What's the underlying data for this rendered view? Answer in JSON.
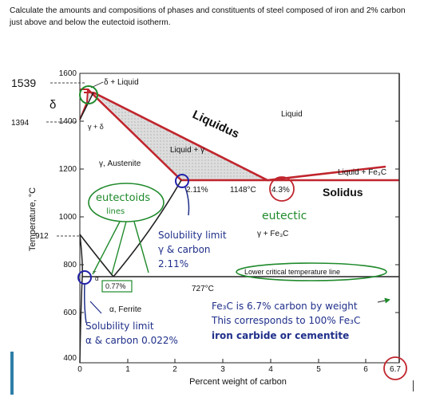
{
  "question": "Calculate the amounts and compositions of phases and constituents of steel composed of iron and 2% carbon just above and below the eutectoid isotherm.",
  "axes": {
    "y_label": "Temperature, °C",
    "x_label": "Percent weight of carbon",
    "y_ticks": [
      "1600",
      "1400",
      "1200",
      "1000",
      "800",
      "600",
      "400"
    ],
    "x_ticks": [
      "0",
      "1",
      "2",
      "3",
      "4",
      "5",
      "6"
    ],
    "y_marks": [
      "1539",
      "1394",
      "912"
    ],
    "x_end_mark": "6.7"
  },
  "regions": {
    "delta_liquid": "δ + Liquid",
    "gamma_delta": "γ + δ",
    "delta": "δ",
    "austenite": "γ, Austenite",
    "liquid_gamma": "Liquid + γ",
    "liquid": "Liquid",
    "liquid_fe3c": "Liquid + Fe₃C",
    "gamma_fe3c": "γ + Fe₃C",
    "ferrite": "α, Ferrite",
    "alpha_small": "α",
    "plus_sign": "+"
  },
  "points": {
    "c_11": "2.11%",
    "t_1148": "1148°C",
    "c_43": "4.3%",
    "t_727": "727°C",
    "c_077": "0.77%"
  },
  "annotations": {
    "liquidus": "Liquidus",
    "solidus": "Solidus",
    "eutectic": "eutectic",
    "eutectoid": "eutectoids",
    "eutectoid_lines": "lines",
    "sol_gamma_1": "Solubility limit",
    "sol_gamma_2": "γ & carbon",
    "sol_gamma_3": "2.11%",
    "sol_alpha_1": "Solubility limit",
    "sol_alpha_2": "α & carbon 0.022%",
    "lower_critical": "Lower critical temperature line",
    "fe3c_1": "Fe₃C is 6.7% carbon by weight",
    "fe3c_2": "This corresponds to 100% Fe₃C",
    "fe3c_3": "iron carbide or cementite"
  },
  "colors": {
    "phase_boundary": "#c0252d",
    "annotation_green": "#1f8a2b",
    "annotation_navy": "#1f2f8a",
    "highlight_blue": "#2222aa",
    "liquid_gamma_fill": "#d7d7d7"
  }
}
